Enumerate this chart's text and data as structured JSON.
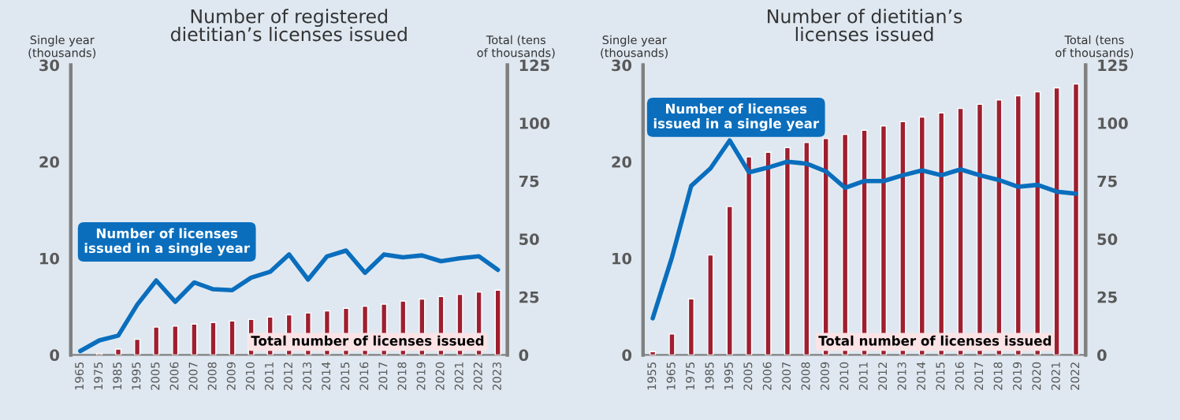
{
  "chart_data": [
    {
      "type": "bar",
      "title": "Number of registered dietitian’s licenses issued",
      "ylabel": "Single year (thousands)",
      "y2label": "Total (tens of thousands)",
      "categories": [
        "1965",
        "1975",
        "1985",
        "1995",
        "2005",
        "2006",
        "2007",
        "2008",
        "2009",
        "2010",
        "2011",
        "2012",
        "2013",
        "2014",
        "2015",
        "2016",
        "2017",
        "2018",
        "2019",
        "2020",
        "2021",
        "2022",
        "2023"
      ],
      "series": [
        {
          "name": "Number of licenses issued in a single year",
          "type": "line",
          "color": "#0a6ebd",
          "values": [
            0.4,
            1.5,
            2.0,
            5.2,
            7.7,
            5.5,
            7.5,
            6.8,
            6.7,
            8.0,
            8.6,
            10.4,
            7.8,
            10.2,
            10.8,
            8.5,
            10.4,
            10.1,
            10.3,
            9.7,
            10.0,
            10.2,
            8.8
          ]
        },
        {
          "name": "Total number of licenses issued",
          "axis": "y2",
          "color": "#9e1f2f",
          "values": [
            null,
            0.6,
            2.5,
            6.7,
            12.0,
            12.4,
            13.3,
            14.0,
            14.6,
            15.3,
            16.3,
            17.3,
            18.1,
            19.0,
            20.1,
            21.0,
            21.9,
            23.2,
            24.1,
            25.2,
            26.1,
            27.1,
            27.9
          ]
        }
      ],
      "ylim": [
        0,
        30
      ],
      "yticks": [
        0,
        10,
        20,
        30
      ],
      "y2lim": [
        0,
        125
      ],
      "y2ticks": [
        0,
        25,
        50,
        75,
        100,
        125
      ],
      "grid": false,
      "legend": false
    },
    {
      "type": "bar",
      "title": "Number of dietitian’s licenses issued",
      "ylabel": "Single year (thousands)",
      "y2label": "Total (tens of thousands)",
      "categories": [
        "1955",
        "1965",
        "1975",
        "1985",
        "1995",
        "2005",
        "2006",
        "2007",
        "2008",
        "2009",
        "2010",
        "2011",
        "2012",
        "2013",
        "2014",
        "2015",
        "2016",
        "2017",
        "2018",
        "2019",
        "2020",
        "2021",
        "2022"
      ],
      "series": [
        {
          "name": "Number of licenses issued in a single year",
          "type": "line",
          "color": "#0a6ebd",
          "values": [
            3.8,
            10.1,
            17.5,
            19.3,
            22.2,
            18.9,
            19.4,
            20.0,
            19.8,
            19.0,
            17.3,
            18.0,
            18.0,
            18.6,
            19.1,
            18.6,
            19.2,
            18.6,
            18.1,
            17.4,
            17.6,
            16.9,
            16.7
          ]
        },
        {
          "name": "Total number of licenses issued",
          "axis": "y2",
          "color": "#9e1f2f",
          "values": [
            1.4,
            9.0,
            24.2,
            43.1,
            64.0,
            85.4,
            87.4,
            89.4,
            91.6,
            93.3,
            95.1,
            96.9,
            98.8,
            100.6,
            102.6,
            104.4,
            106.3,
            108.1,
            110.0,
            111.8,
            113.5,
            115.2,
            116.9
          ]
        }
      ],
      "ylim": [
        0,
        30
      ],
      "yticks": [
        0,
        10,
        20,
        30
      ],
      "y2lim": [
        0,
        125
      ],
      "y2ticks": [
        0,
        25,
        50,
        75,
        100,
        125
      ],
      "grid": false,
      "legend": false
    }
  ]
}
